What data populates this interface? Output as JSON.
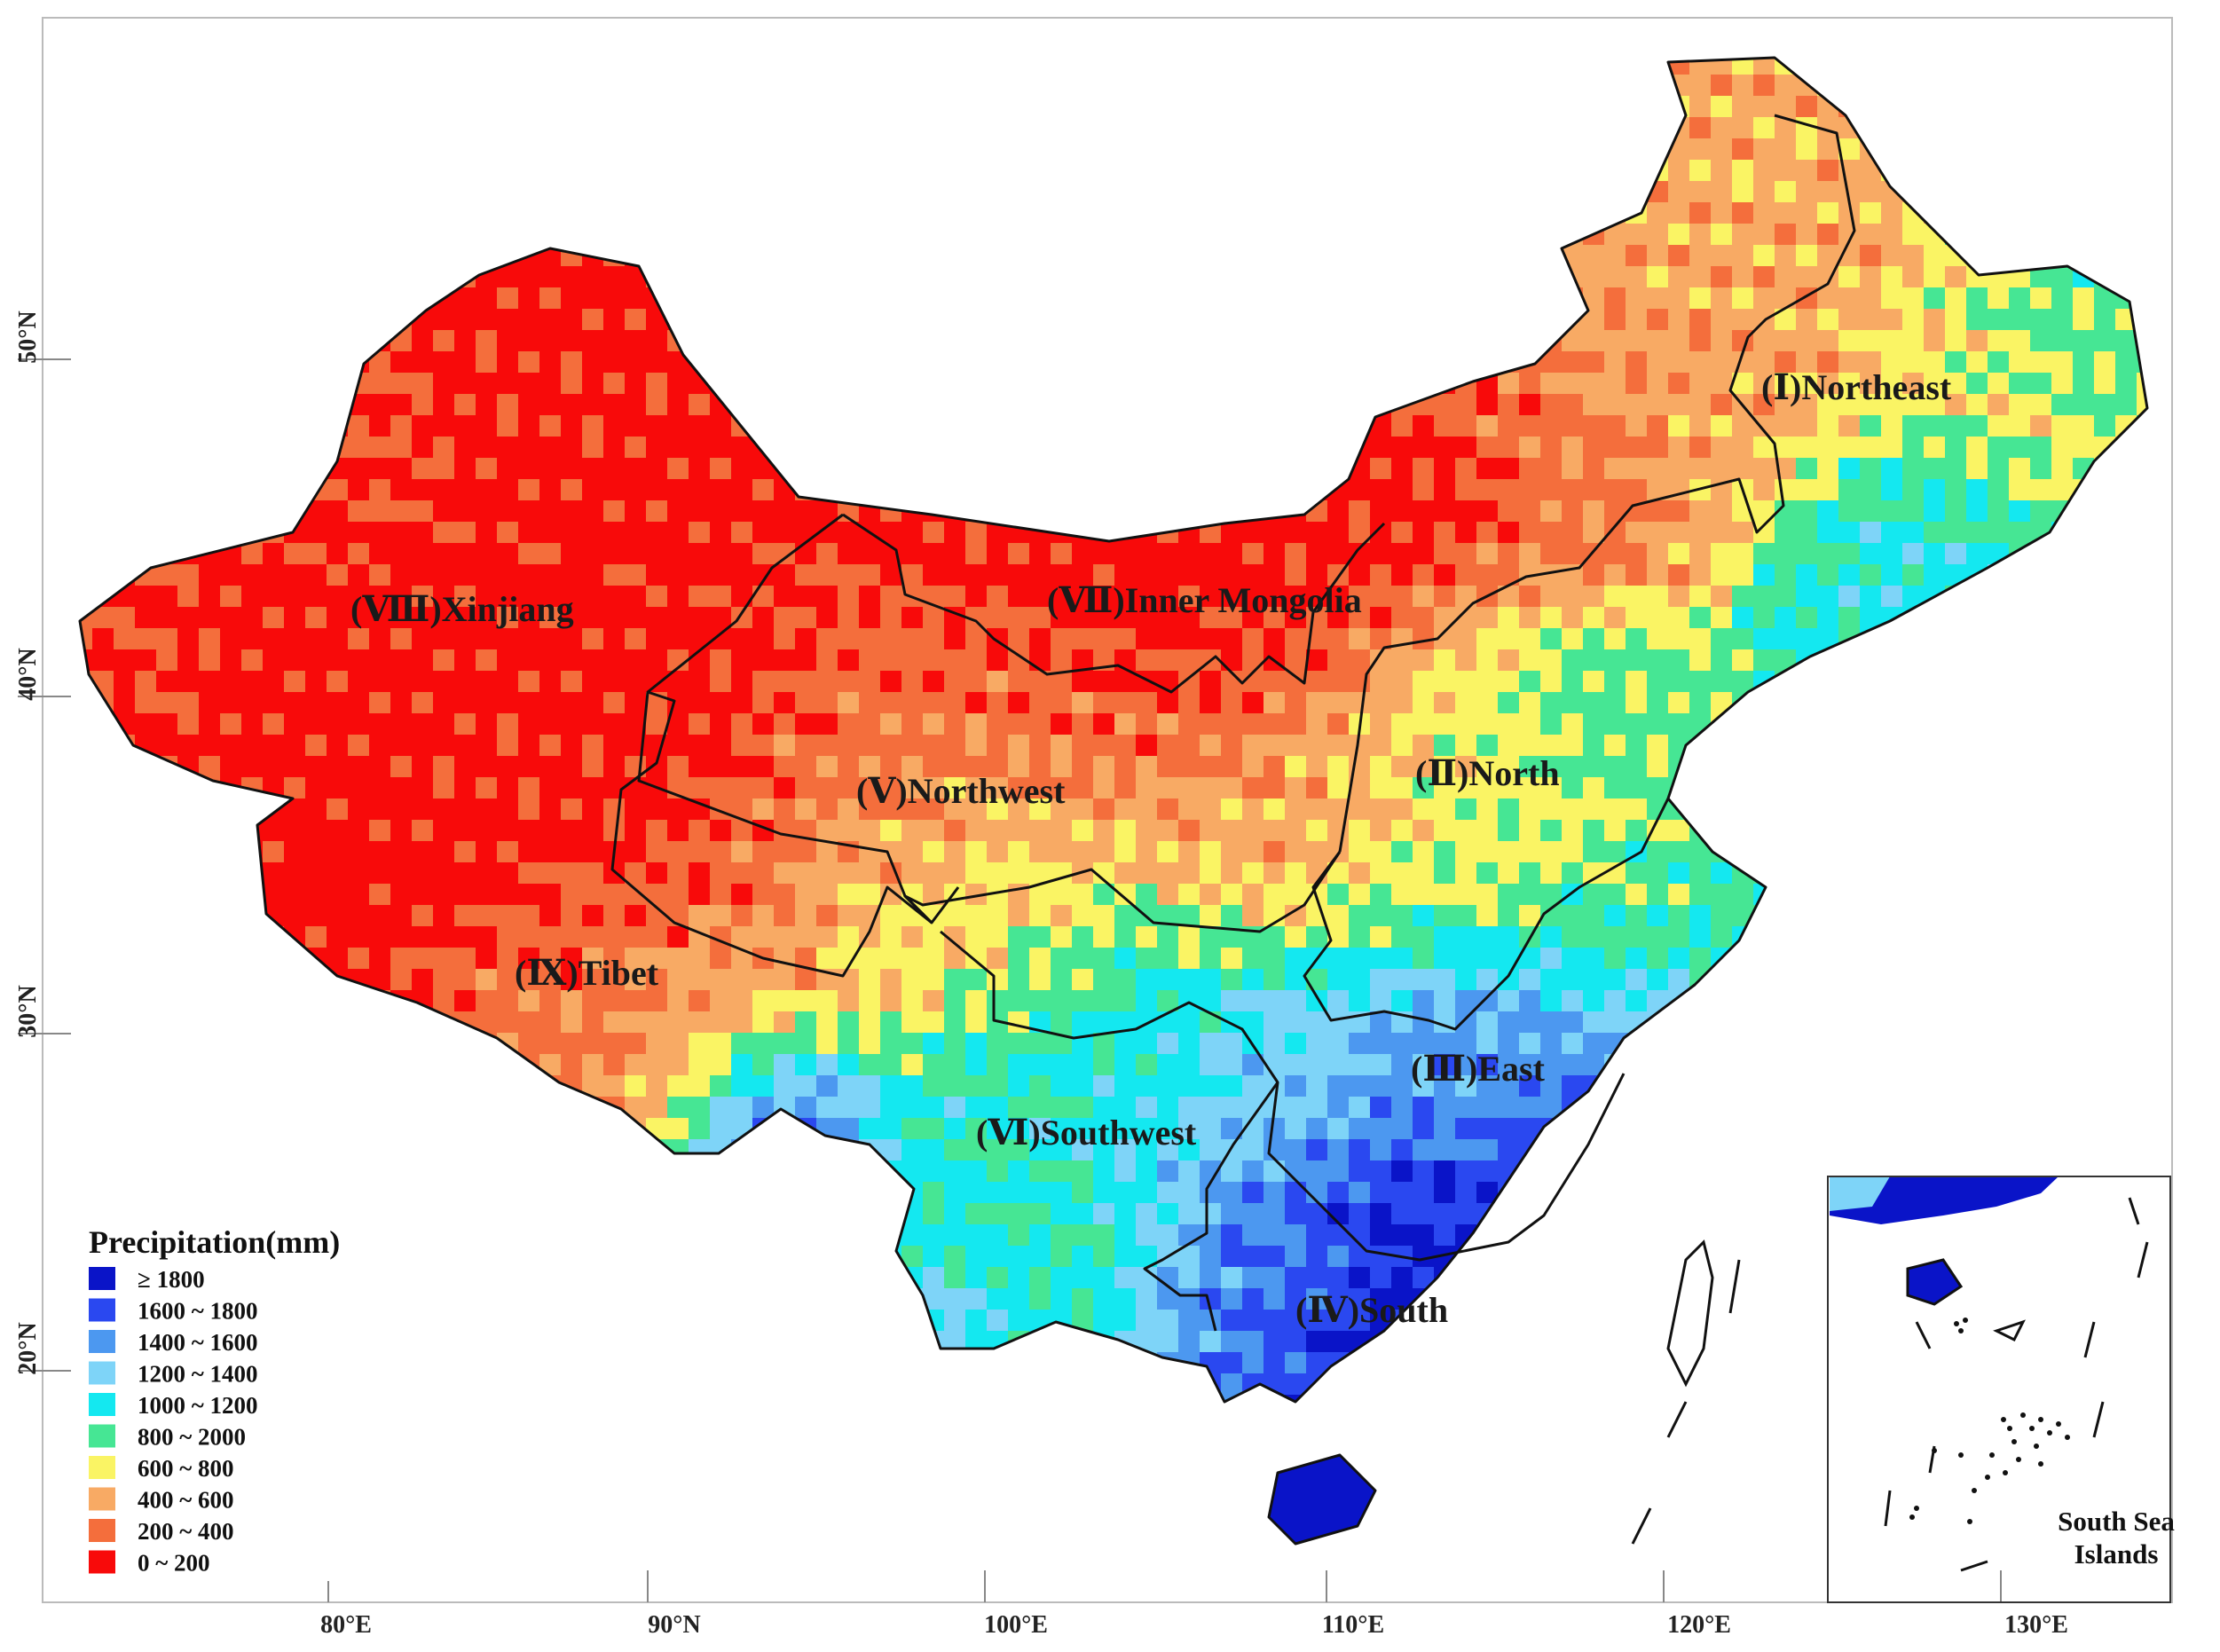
{
  "colors": {
    "ge1800": "#0A14C8",
    "c1600_1800": "#2A48F0",
    "c1400_1600": "#4C98F0",
    "c1200_1400": "#7ED4F8",
    "c1000_1200": "#14E8F0",
    "c800_2000": "#46E694",
    "c600_800": "#FAF464",
    "c400_600": "#F8AA64",
    "c200_400": "#F46E3C",
    "c0_200": "#F80A0A"
  },
  "legend": {
    "title": "Precipitation(mm)",
    "items": [
      {
        "label": "≥ 1800",
        "color_key": "ge1800"
      },
      {
        "label": "1600 ~ 1800",
        "color_key": "c1600_1800"
      },
      {
        "label": "1400 ~ 1600",
        "color_key": "c1400_1600"
      },
      {
        "label": "1200 ~ 1400",
        "color_key": "c1200_1400"
      },
      {
        "label": "1000 ~ 1200",
        "color_key": "c1000_1200"
      },
      {
        "label": "800 ~ 2000",
        "color_key": "c800_2000"
      },
      {
        "label": "600 ~ 800",
        "color_key": "c600_800"
      },
      {
        "label": "400 ~ 600",
        "color_key": "c400_600"
      },
      {
        "label": "200 ~ 400",
        "color_key": "c200_400"
      },
      {
        "label": "0 ~ 200",
        "color_key": "c0_200"
      }
    ]
  },
  "regions": [
    {
      "id": "I",
      "label": "(Ⅰ)Northeast"
    },
    {
      "id": "II",
      "label": "(Ⅱ)North"
    },
    {
      "id": "III",
      "label": "(Ⅲ)East"
    },
    {
      "id": "IV",
      "label": "(Ⅳ)South"
    },
    {
      "id": "V",
      "label": "(Ⅴ)Northwest"
    },
    {
      "id": "VI",
      "label": "(Ⅵ)Southwest"
    },
    {
      "id": "VII",
      "label": "(Ⅶ)Inner Mongolia"
    },
    {
      "id": "VIII",
      "label": "(Ⅷ)Xinjiang"
    },
    {
      "id": "IX",
      "label": "(Ⅸ)Tibet"
    }
  ],
  "longitude_labels": [
    "80°E",
    "90°N",
    "100°E",
    "110°E",
    "120°E",
    "130°E"
  ],
  "latitude_labels": [
    "50°N",
    "40°N",
    "30°N",
    "20°N"
  ],
  "inset": {
    "label_line1": "South Sea",
    "label_line2": "Islands"
  }
}
